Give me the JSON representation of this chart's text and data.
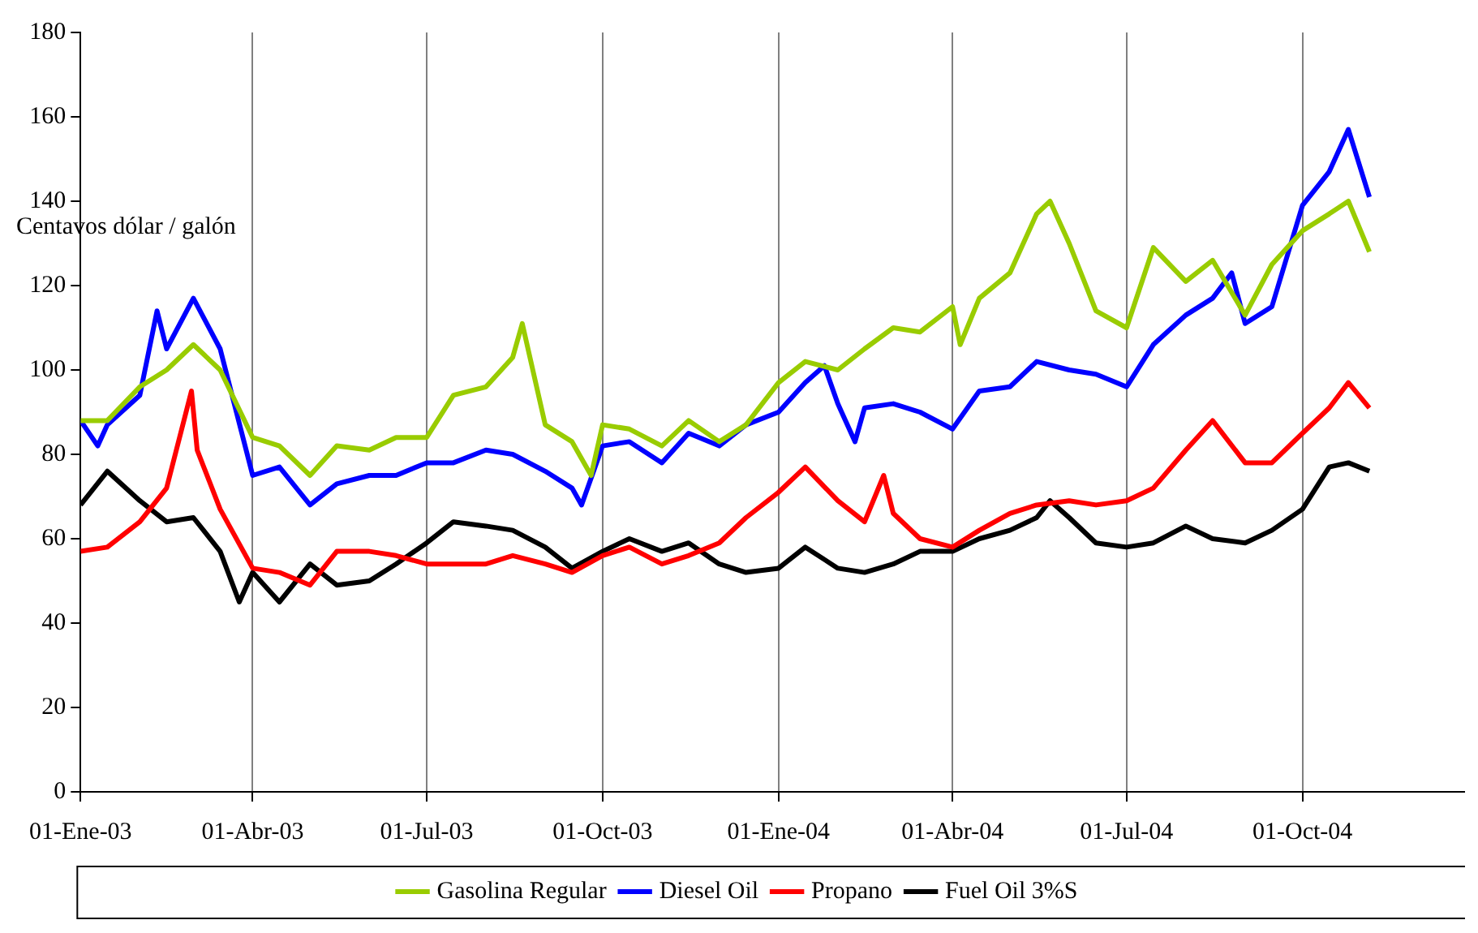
{
  "chart_data": {
    "type": "line",
    "ylabel": "Centavos dólar / galón",
    "xlim": [
      "2003-01-01",
      "2004-12-25"
    ],
    "ylim": [
      0,
      180
    ],
    "yticks": [
      0,
      20,
      40,
      60,
      80,
      100,
      120,
      140,
      160,
      180
    ],
    "xticks": [
      {
        "value": "2003-01-01",
        "label": "01-Ene-03"
      },
      {
        "value": "2003-04-01",
        "label": "01-Abr-03"
      },
      {
        "value": "2003-07-01",
        "label": "01-Jul-03"
      },
      {
        "value": "2003-10-01",
        "label": "01-Oct-03"
      },
      {
        "value": "2004-01-01",
        "label": "01-Ene-04"
      },
      {
        "value": "2004-04-01",
        "label": "01-Abr-04"
      },
      {
        "value": "2004-07-01",
        "label": "01-Jul-04"
      },
      {
        "value": "2004-10-01",
        "label": "01-Oct-04"
      }
    ],
    "grid": "x",
    "legend": "bottom",
    "marker": "none",
    "line_style": "solid",
    "series": [
      {
        "name": "Gasolina Regular",
        "color": "#99cc00",
        "x": [
          "2003-01-01",
          "2003-01-15",
          "2003-02-01",
          "2003-02-15",
          "2003-03-01",
          "2003-03-15",
          "2003-04-01",
          "2003-04-15",
          "2003-05-01",
          "2003-05-15",
          "2003-06-01",
          "2003-06-15",
          "2003-07-01",
          "2003-07-15",
          "2003-08-01",
          "2003-08-15",
          "2003-08-20",
          "2003-09-01",
          "2003-09-15",
          "2003-09-25",
          "2003-10-01",
          "2003-10-15",
          "2003-11-01",
          "2003-11-15",
          "2003-12-01",
          "2003-12-15",
          "2004-01-01",
          "2004-01-15",
          "2004-02-01",
          "2004-02-15",
          "2004-03-01",
          "2004-03-15",
          "2004-04-01",
          "2004-04-05",
          "2004-04-15",
          "2004-05-01",
          "2004-05-15",
          "2004-05-22",
          "2004-06-01",
          "2004-06-15",
          "2004-07-01",
          "2004-07-15",
          "2004-08-01",
          "2004-08-15",
          "2004-09-01",
          "2004-09-15",
          "2004-10-01",
          "2004-10-15",
          "2004-10-25",
          "2004-11-05"
        ],
        "values": [
          88,
          88,
          96,
          100,
          106,
          100,
          84,
          82,
          75,
          82,
          81,
          84,
          84,
          94,
          96,
          103,
          111,
          87,
          83,
          75,
          87,
          86,
          82,
          88,
          83,
          87,
          97,
          102,
          100,
          105,
          110,
          109,
          115,
          106,
          117,
          123,
          137,
          140,
          130,
          114,
          110,
          129,
          121,
          126,
          113,
          125,
          133,
          137,
          140,
          128
        ]
      },
      {
        "name": "Diesel Oil",
        "color": "#0000ff",
        "x": [
          "2003-01-01",
          "2003-01-10",
          "2003-01-15",
          "2003-02-01",
          "2003-02-10",
          "2003-02-15",
          "2003-03-01",
          "2003-03-15",
          "2003-04-01",
          "2003-04-15",
          "2003-05-01",
          "2003-05-15",
          "2003-06-01",
          "2003-06-15",
          "2003-07-01",
          "2003-07-15",
          "2003-08-01",
          "2003-08-15",
          "2003-09-01",
          "2003-09-15",
          "2003-09-20",
          "2003-10-01",
          "2003-10-15",
          "2003-11-01",
          "2003-11-15",
          "2003-12-01",
          "2003-12-15",
          "2004-01-01",
          "2004-01-15",
          "2004-01-25",
          "2004-02-01",
          "2004-02-10",
          "2004-02-15",
          "2004-03-01",
          "2004-03-15",
          "2004-04-01",
          "2004-04-15",
          "2004-05-01",
          "2004-05-15",
          "2004-06-01",
          "2004-06-15",
          "2004-07-01",
          "2004-07-15",
          "2004-08-01",
          "2004-08-15",
          "2004-08-25",
          "2004-09-01",
          "2004-09-15",
          "2004-10-01",
          "2004-10-15",
          "2004-10-25",
          "2004-11-05"
        ],
        "values": [
          88,
          82,
          87,
          94,
          114,
          105,
          117,
          105,
          75,
          77,
          68,
          73,
          75,
          75,
          78,
          78,
          81,
          80,
          76,
          72,
          68,
          82,
          83,
          78,
          85,
          82,
          87,
          90,
          97,
          101,
          92,
          83,
          91,
          92,
          90,
          86,
          95,
          96,
          102,
          100,
          99,
          96,
          106,
          113,
          117,
          123,
          111,
          115,
          139,
          147,
          157,
          141
        ]
      },
      {
        "name": "Propano",
        "color": "#ff0000",
        "x": [
          "2003-01-01",
          "2003-01-15",
          "2003-02-01",
          "2003-02-15",
          "2003-02-28",
          "2003-03-03",
          "2003-03-15",
          "2003-04-01",
          "2003-04-15",
          "2003-05-01",
          "2003-05-15",
          "2003-06-01",
          "2003-06-15",
          "2003-07-01",
          "2003-07-15",
          "2003-08-01",
          "2003-08-15",
          "2003-09-01",
          "2003-09-15",
          "2003-10-01",
          "2003-10-15",
          "2003-11-01",
          "2003-11-15",
          "2003-12-01",
          "2003-12-15",
          "2004-01-01",
          "2004-01-15",
          "2004-02-01",
          "2004-02-15",
          "2004-02-25",
          "2004-03-01",
          "2004-03-15",
          "2004-04-01",
          "2004-04-15",
          "2004-05-01",
          "2004-05-15",
          "2004-06-01",
          "2004-06-15",
          "2004-07-01",
          "2004-07-15",
          "2004-08-01",
          "2004-08-15",
          "2004-09-01",
          "2004-09-15",
          "2004-10-01",
          "2004-10-15",
          "2004-10-25",
          "2004-11-05"
        ],
        "values": [
          57,
          58,
          64,
          72,
          95,
          81,
          67,
          53,
          52,
          49,
          57,
          57,
          56,
          54,
          54,
          54,
          56,
          54,
          52,
          56,
          58,
          54,
          56,
          59,
          65,
          71,
          77,
          69,
          64,
          75,
          66,
          60,
          58,
          62,
          66,
          68,
          69,
          68,
          69,
          72,
          81,
          88,
          78,
          78,
          85,
          91,
          97,
          91
        ]
      },
      {
        "name": "Fuel Oil 3%S",
        "color": "#000000",
        "x": [
          "2003-01-01",
          "2003-01-15",
          "2003-02-01",
          "2003-02-15",
          "2003-03-01",
          "2003-03-15",
          "2003-03-25",
          "2003-04-01",
          "2003-04-15",
          "2003-05-01",
          "2003-05-15",
          "2003-06-01",
          "2003-06-15",
          "2003-07-01",
          "2003-07-15",
          "2003-08-01",
          "2003-08-15",
          "2003-09-01",
          "2003-09-15",
          "2003-10-01",
          "2003-10-15",
          "2003-11-01",
          "2003-11-15",
          "2003-12-01",
          "2003-12-15",
          "2004-01-01",
          "2004-01-15",
          "2004-02-01",
          "2004-02-15",
          "2004-03-01",
          "2004-03-15",
          "2004-04-01",
          "2004-04-15",
          "2004-05-01",
          "2004-05-15",
          "2004-05-22",
          "2004-06-01",
          "2004-06-15",
          "2004-07-01",
          "2004-07-15",
          "2004-08-01",
          "2004-08-15",
          "2004-09-01",
          "2004-09-15",
          "2004-10-01",
          "2004-10-15",
          "2004-10-25",
          "2004-11-05"
        ],
        "values": [
          68,
          76,
          69,
          64,
          65,
          57,
          45,
          52,
          45,
          54,
          49,
          50,
          54,
          59,
          64,
          63,
          62,
          58,
          53,
          57,
          60,
          57,
          59,
          54,
          52,
          53,
          58,
          53,
          52,
          54,
          57,
          57,
          60,
          62,
          65,
          69,
          65,
          59,
          58,
          59,
          63,
          60,
          59,
          62,
          67,
          77,
          78,
          76
        ]
      }
    ]
  }
}
